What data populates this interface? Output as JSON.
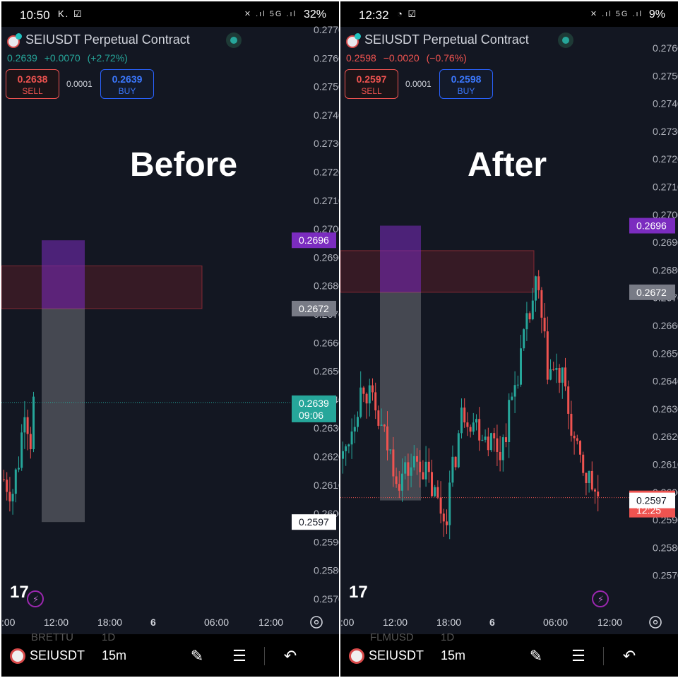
{
  "panels": {
    "before": {
      "status": {
        "time": "10:50",
        "battery": "32%"
      },
      "symbol_title": "SEIUSDT Perpetual Contract",
      "quote": {
        "last": "0.2639",
        "change": "+0.0070",
        "change_pct": "(+2.72%)",
        "direction": "up"
      },
      "sell": {
        "price": "0.2638",
        "label": "SELL"
      },
      "spread": "0.0001",
      "buy": {
        "price": "0.2639",
        "label": "BUY"
      },
      "overlay_word": "Before",
      "y_axis": {
        "min": 0.2565,
        "max": 0.277,
        "ticks": [
          "0.2770",
          "0.2760",
          "0.2750",
          "0.2740",
          "0.2730",
          "0.2720",
          "0.2710",
          "0.2700",
          "0.2690",
          "0.2680",
          "0.2670",
          "0.2660",
          "0.2650",
          "0.2640",
          "0.2630",
          "0.2620",
          "0.2610",
          "0.2600",
          "0.2590",
          "0.2580",
          "0.2570"
        ]
      },
      "x_axis": {
        "ticks": [
          ":00",
          "12:00",
          "18:00",
          "6",
          "06:00",
          "12:00"
        ]
      },
      "price_labels": [
        {
          "value": "0.2696",
          "color": "#7b2cbf"
        },
        {
          "value": "0.2672",
          "color": "#787b86"
        },
        {
          "value": "0.2639",
          "sub": "09:06",
          "color": "#26a69a"
        },
        {
          "value": "0.2597",
          "color": "#ffffff"
        }
      ],
      "bottom": {
        "symbol": "SEIUSDT",
        "timeframe": "15m",
        "ghost_symbol": "BRETTU",
        "ghost_tf": "1D"
      }
    },
    "after": {
      "status": {
        "time": "12:32",
        "battery": "9%"
      },
      "symbol_title": "SEIUSDT Perpetual Contract",
      "quote": {
        "last": "0.2598",
        "change": "−0.0020",
        "change_pct": "(−0.76%)",
        "direction": "down"
      },
      "sell": {
        "price": "0.2597",
        "label": "SELL"
      },
      "spread": "0.0001",
      "buy": {
        "price": "0.2598",
        "label": "BUY"
      },
      "overlay_word": "After",
      "y_axis": {
        "min": 0.2565,
        "max": 0.2765,
        "ticks": [
          "0.2760",
          "0.2750",
          "0.2740",
          "0.2730",
          "0.2720",
          "0.2710",
          "0.2700",
          "0.2690",
          "0.2680",
          "0.2670",
          "0.2660",
          "0.2650",
          "0.2640",
          "0.2630",
          "0.2620",
          "0.2610",
          "0.2600",
          "0.2590",
          "0.2580",
          "0.2570"
        ]
      },
      "x_axis": {
        "ticks": [
          ":00",
          "12:00",
          "18:00",
          "6",
          "06:00",
          "12:00"
        ]
      },
      "price_labels": [
        {
          "value": "0.2696",
          "color": "#7b2cbf"
        },
        {
          "value": "0.2672",
          "color": "#787b86"
        },
        {
          "value": "0.2598",
          "sub": "12:25",
          "color": "#ef5350"
        },
        {
          "value": "0.2597",
          "color": "#ffffff"
        }
      ],
      "bottom": {
        "symbol": "SEIUSDT",
        "timeframe": "15m",
        "ghost_symbol": "FLMUSD",
        "ghost_tf": "1D"
      }
    }
  },
  "colors": {
    "up": "#26a69a",
    "down": "#ef5350",
    "bg": "#131722",
    "text": "#d1d4dc"
  },
  "icons": [
    "tradingview-logo-icon",
    "lightning-icon",
    "settings-icon",
    "pencil-icon",
    "sliders-icon",
    "undo-icon"
  ]
}
